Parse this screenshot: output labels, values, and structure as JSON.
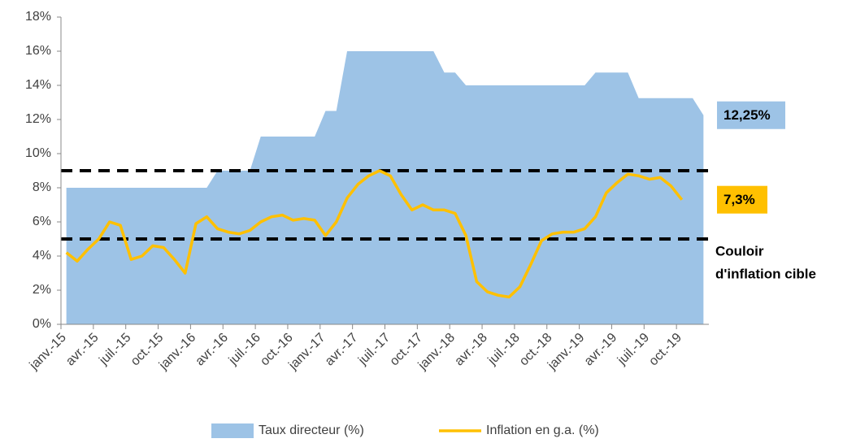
{
  "chart_data": {
    "type": "area_line",
    "categories": [
      "janv.-15",
      null,
      null,
      "avr.-15",
      null,
      null,
      "juil.-15",
      null,
      null,
      "oct.-15",
      null,
      null,
      "janv.-16",
      null,
      null,
      "avr.-16",
      null,
      null,
      "juil.-16",
      null,
      null,
      "oct.-16",
      null,
      null,
      "janv.-17",
      null,
      null,
      "avr.-17",
      null,
      null,
      "juil.-17",
      null,
      null,
      "oct.-17",
      null,
      null,
      "janv.-18",
      null,
      null,
      "avr.-18",
      null,
      null,
      "juil.-18",
      null,
      null,
      "oct.-18",
      null,
      null,
      "janv.-19",
      null,
      null,
      "avr.-19",
      null,
      null,
      "juil.-19",
      null,
      null,
      "oct.-19",
      null,
      null
    ],
    "series": [
      {
        "name": "Taux directeur (%)",
        "kind": "area",
        "color": "#9dc3e6",
        "values": [
          8,
          8,
          8,
          8,
          8,
          8,
          8,
          8,
          8,
          8,
          8,
          8,
          8,
          8,
          9,
          9,
          9,
          9,
          11,
          11,
          11,
          11,
          11,
          11,
          12.5,
          12.5,
          16,
          16,
          16,
          16,
          16,
          16,
          16,
          16,
          16,
          14.75,
          14.75,
          14,
          14,
          14,
          14,
          14,
          14,
          14,
          14,
          14,
          14,
          14,
          14,
          14.75,
          14.75,
          14.75,
          14.75,
          13.25,
          13.25,
          13.25,
          13.25,
          13.25,
          13.25,
          12.25
        ]
      },
      {
        "name": "Inflation en g.a. (%)",
        "kind": "line",
        "color": "#ffc000",
        "values": [
          4.2,
          3.7,
          4.4,
          5.0,
          6.0,
          5.8,
          3.8,
          4.0,
          4.6,
          4.5,
          3.8,
          3.0,
          5.9,
          6.3,
          5.6,
          5.4,
          5.3,
          5.5,
          6.0,
          6.3,
          6.4,
          6.1,
          6.2,
          6.1,
          5.2,
          6.0,
          7.4,
          8.2,
          8.7,
          9.0,
          8.7,
          7.6,
          6.7,
          7.0,
          6.7,
          6.7,
          6.5,
          5.2,
          2.5,
          1.9,
          1.7,
          1.6,
          2.2,
          3.5,
          4.9,
          5.3,
          5.4,
          5.4,
          5.6,
          6.3,
          7.7,
          8.3,
          8.8,
          8.7,
          8.5,
          8.6,
          8.1,
          7.3,
          null,
          null
        ]
      }
    ],
    "ylim": [
      0,
      18
    ],
    "yticks": [
      {
        "value": 0,
        "label": "0%"
      },
      {
        "value": 2,
        "label": "2%"
      },
      {
        "value": 4,
        "label": "4%"
      },
      {
        "value": 6,
        "label": "6%"
      },
      {
        "value": 8,
        "label": "8%"
      },
      {
        "value": 10,
        "label": "10%"
      },
      {
        "value": 12,
        "label": "12%"
      },
      {
        "value": 14,
        "label": "14%"
      },
      {
        "value": 16,
        "label": "16%"
      },
      {
        "value": 18,
        "label": "18%"
      }
    ],
    "hlines": [
      9,
      5
    ],
    "annotations": [
      {
        "text": "12,25%",
        "value": 12.25,
        "color": "#9dc3e6"
      },
      {
        "text": "7,3%",
        "value": 7.3,
        "color": "#ffc000"
      },
      {
        "lines": [
          "Couloir",
          "d'inflation cible"
        ],
        "value": 5
      }
    ],
    "legend": "bottom"
  }
}
